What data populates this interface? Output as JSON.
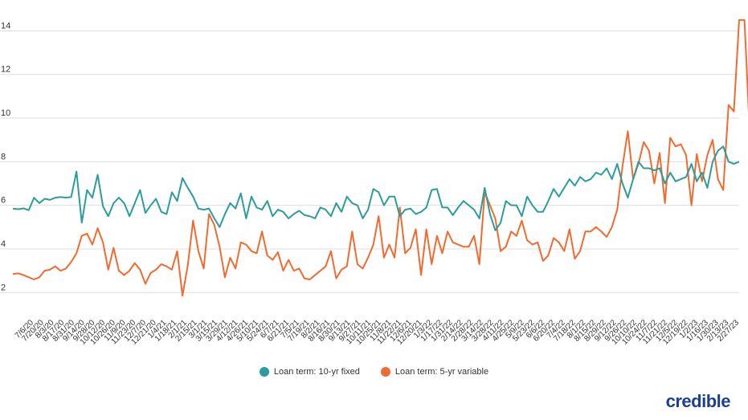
{
  "colors": {
    "fixed": "#2a9d9c",
    "variable": "#f26a2e",
    "grid": "#dddddd",
    "brand": "#1c3f8f"
  },
  "legend": {
    "fixed_label": "Loan term: 10-yr fixed",
    "variable_label": "Loan term: 5-yr variable"
  },
  "brand": {
    "logo_text": "credible"
  },
  "chart_data": {
    "type": "line",
    "title": "",
    "xlabel": "",
    "ylabel": "",
    "ylim": [
      1.2,
      14.9
    ],
    "yticks": [
      2,
      4,
      6,
      8,
      10,
      12,
      14
    ],
    "grid": true,
    "legend_position": "bottom",
    "x_tick_labels": [
      "7/6/20",
      "7/20/20",
      "8/3/20",
      "8/17/20",
      "8/31/20",
      "9/14/20",
      "9/28/20",
      "10/12/20",
      "10/26/20",
      "11/9/20",
      "11/23/20",
      "12/7/20",
      "12/21/20",
      "1/4/21",
      "1/18/21",
      "2/1/21",
      "2/15/21",
      "3/1/21",
      "3/15/21",
      "3/29/21",
      "4/12/21",
      "4/26/21",
      "5/10/21",
      "5/24/21",
      "6/7/21",
      "6/21/21",
      "7/5/21",
      "7/19/21",
      "8/2/21",
      "8/16/21",
      "8/30/21",
      "9/13/21",
      "9/27/21",
      "10/11/21",
      "10/25/21",
      "11/8/21",
      "11/22/21",
      "12/6/21",
      "12/20/21",
      "1/3/22",
      "1/17/22",
      "1/31/22",
      "2/14/22",
      "2/28/22",
      "3/14/22",
      "3/28/22",
      "4/11/22",
      "4/25/22",
      "5/9/22",
      "5/23/22",
      "6/6/22",
      "6/20/22",
      "7/4/22",
      "7/18/22",
      "8/1/22",
      "8/15/22",
      "8/29/22",
      "9/12/22",
      "9/26/22",
      "10/10/22",
      "10/24/22",
      "11/7/22",
      "11/21/22",
      "12/5/22",
      "12/19/22",
      "1/2/23",
      "1/16/23",
      "1/30/23",
      "2/13/23",
      "2/27/23"
    ],
    "series": [
      {
        "name": "Loan term: 10-yr fixed",
        "values": [
          5.85,
          5.82,
          5.86,
          5.78,
          6.35,
          6.1,
          6.3,
          6.25,
          6.35,
          6.38,
          6.35,
          6.38,
          7.55,
          5.2,
          6.7,
          6.35,
          7.4,
          5.95,
          5.5,
          6.1,
          6.35,
          6.1,
          5.5,
          6.1,
          6.7,
          5.65,
          6.0,
          6.3,
          5.7,
          5.6,
          6.6,
          6.2,
          7.25,
          6.8,
          6.4,
          5.85,
          5.8,
          5.85,
          5.4,
          5.0,
          5.6,
          6.1,
          5.85,
          6.55,
          5.4,
          6.4,
          5.9,
          5.8,
          6.2,
          5.5,
          5.8,
          5.7,
          5.4,
          5.6,
          5.75,
          5.55,
          5.5,
          5.4,
          5.9,
          5.8,
          5.5,
          6.1,
          5.7,
          6.4,
          6.1,
          6.0,
          5.4,
          5.8,
          6.75,
          6.6,
          6.0,
          6.4,
          6.4,
          5.5,
          5.8,
          5.85,
          5.6,
          5.7,
          5.9,
          6.7,
          6.75,
          5.9,
          5.9,
          5.55,
          5.9,
          6.2,
          6.0,
          5.8,
          5.4,
          6.8,
          5.6,
          4.85,
          5.2,
          6.2,
          6.0,
          6.0,
          5.5,
          6.4,
          6.0,
          5.7,
          5.7,
          6.2,
          6.75,
          6.4,
          6.8,
          7.2,
          6.9,
          7.3,
          7.1,
          7.2,
          7.5,
          7.4,
          7.7,
          7.2,
          7.9,
          7.0,
          6.35,
          7.2,
          8.0,
          7.7,
          7.7,
          7.6,
          7.7,
          7.0,
          7.5,
          7.1,
          7.2,
          7.3,
          7.9,
          7.1,
          7.5,
          6.8,
          8.0,
          8.5,
          8.7,
          8.0,
          7.9,
          8.0
        ]
      },
      {
        "name": "Loan term: 5-yr variable",
        "values": [
          2.85,
          2.88,
          2.8,
          2.7,
          2.6,
          2.7,
          3.0,
          3.05,
          3.2,
          3.0,
          3.1,
          3.4,
          3.8,
          4.6,
          4.7,
          4.2,
          4.95,
          4.3,
          3.05,
          4.05,
          3.0,
          2.8,
          3.0,
          3.35,
          3.05,
          2.4,
          2.9,
          3.05,
          3.3,
          3.2,
          3.05,
          3.9,
          1.85,
          3.25,
          5.3,
          3.9,
          3.1,
          5.6,
          5.1,
          4.1,
          2.7,
          3.6,
          3.1,
          4.3,
          4.2,
          3.9,
          3.8,
          4.8,
          3.7,
          3.5,
          3.85,
          3.0,
          3.5,
          3.0,
          3.1,
          2.65,
          2.6,
          2.8,
          3.0,
          3.2,
          3.9,
          2.65,
          3.05,
          3.2,
          4.8,
          3.3,
          3.1,
          3.6,
          4.2,
          5.5,
          3.6,
          4.2,
          3.6,
          5.9,
          3.8,
          4.05,
          4.9,
          2.8,
          4.9,
          3.3,
          4.6,
          3.8,
          4.8,
          4.3,
          4.2,
          4.1,
          4.1,
          4.6,
          3.3,
          6.6,
          6.0,
          5.4,
          3.9,
          4.1,
          4.8,
          4.6,
          5.3,
          4.4,
          4.2,
          4.3,
          3.45,
          3.7,
          4.5,
          4.3,
          3.9,
          4.9,
          3.55,
          3.9,
          4.8,
          4.8,
          5.0,
          4.8,
          4.55,
          5.0,
          5.8,
          7.8,
          9.4,
          7.2,
          7.9,
          8.9,
          8.5,
          7.0,
          8.4,
          6.1,
          9.1,
          8.7,
          8.8,
          8.3,
          6.0,
          8.35,
          7.1,
          8.3,
          9.0,
          7.2,
          6.7,
          10.6,
          10.3,
          14.5,
          14.5,
          9.3
        ]
      }
    ]
  }
}
